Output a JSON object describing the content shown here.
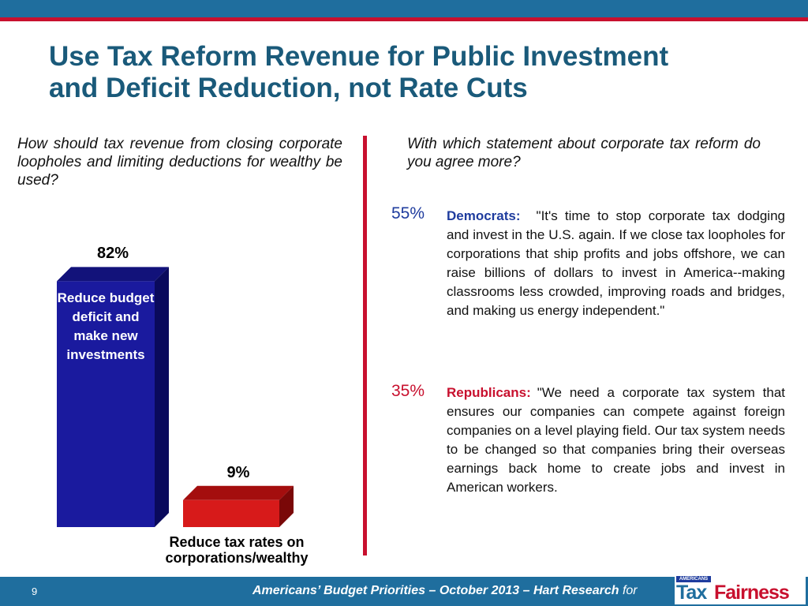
{
  "slide": {
    "title": "Use Tax Reform Revenue for Public Investment\nand Deficit Reduction, not Rate Cuts",
    "page_number": "9",
    "footer_text": "Americans’ Budget Priorities  – October 2013 – Hart Research ",
    "footer_for": "for"
  },
  "left": {
    "question": "How should tax revenue from closing corporate loopholes and limiting deductions for wealthy be used?"
  },
  "chart_data": {
    "type": "bar",
    "categories": [
      "Reduce budget deficit and make new investments",
      "Reduce tax rates on corporations/wealthy"
    ],
    "values": [
      82,
      9
    ],
    "value_labels": [
      "82%",
      "9%"
    ],
    "colors": [
      "#1a1a9e",
      "#d71a1a"
    ],
    "ylim": [
      0,
      100
    ]
  },
  "right": {
    "question": "With which statement about corporate tax reform do you agree more?",
    "democrats": {
      "pct": "55%",
      "party": "Democrats:",
      "quote": "\"It's time to stop corporate tax dodging and invest in the U.S. again. If we close tax loopholes for corporations that ship profits and jobs offshore, we can raise billions of dollars to invest in America--making classrooms less crowded, improving roads and bridges, and making us energy independent.\""
    },
    "republicans": {
      "pct": "35%",
      "party": "Republicans:",
      "quote": "\"We need a corporate tax system that ensures our companies can compete against foreign companies on a level playing field. Our tax system needs to be changed so that companies bring their overseas earnings back home to create jobs and invest in American workers."
    }
  },
  "logo": {
    "small": "AMERICANS FOR",
    "tax": "Tax",
    "fairness": "Fairness"
  }
}
